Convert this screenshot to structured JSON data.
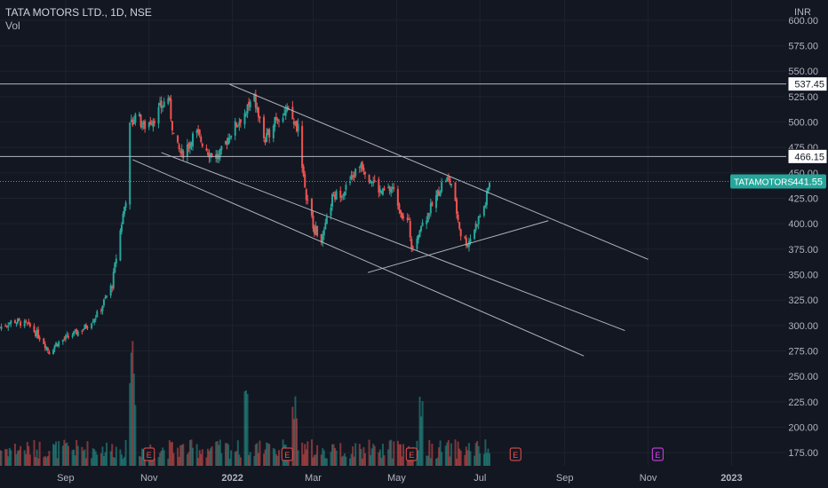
{
  "header": {
    "symbol_title": "TATA MOTORS LTD., 1D, NSE",
    "indicator_label": "Vol"
  },
  "chart_data": {
    "type": "candlestick",
    "currency_label": "INR",
    "price_axis_ticks": [
      "600.00",
      "575.00",
      "550.00",
      "525.00",
      "500.00",
      "475.00",
      "450.00",
      "425.00",
      "400.00",
      "375.00",
      "350.00",
      "325.00",
      "300.00",
      "275.00",
      "250.00",
      "225.00",
      "200.00",
      "175.00"
    ],
    "price_axis_values": [
      600,
      575,
      550,
      525,
      500,
      475,
      450,
      425,
      400,
      375,
      350,
      325,
      300,
      275,
      250,
      225,
      200,
      175
    ],
    "time_axis_labels": [
      "Sep",
      "Nov",
      "2022",
      "Mar",
      "May",
      "Jul",
      "Sep",
      "Nov",
      "2023"
    ],
    "time_axis_dates": [
      "2021-09-01",
      "2021-11-01",
      "2022-01-01",
      "2022-03-01",
      "2022-05-01",
      "2022-07-01",
      "2022-09-01",
      "2022-11-01",
      "2023-01-01"
    ],
    "ylim": [
      162,
      620
    ],
    "xlim": [
      "2021-07-15",
      "2023-02-10"
    ],
    "colors": {
      "up": "#26a69a",
      "down": "#ef5350",
      "background": "#131722",
      "grid": "#1e222d",
      "lines": "#b2b5be"
    },
    "series": [
      {
        "name": "TATAMOTORS",
        "closes": [
          [
            "2021-07-15",
            298
          ],
          [
            "2021-07-25",
            305
          ],
          [
            "2021-08-05",
            300
          ],
          [
            "2021-08-15",
            286
          ],
          [
            "2021-08-20",
            274
          ],
          [
            "2021-08-25",
            282
          ],
          [
            "2021-09-05",
            290
          ],
          [
            "2021-09-15",
            298
          ],
          [
            "2021-09-25",
            312
          ],
          [
            "2021-10-05",
            340
          ],
          [
            "2021-10-10",
            385
          ],
          [
            "2021-10-15",
            425
          ],
          [
            "2021-10-18",
            495
          ],
          [
            "2021-10-22",
            510
          ],
          [
            "2021-10-28",
            495
          ],
          [
            "2021-11-05",
            505
          ],
          [
            "2021-11-15",
            525
          ],
          [
            "2021-11-20",
            478
          ],
          [
            "2021-11-25",
            468
          ],
          [
            "2021-12-05",
            490
          ],
          [
            "2021-12-15",
            470
          ],
          [
            "2021-12-22",
            465
          ],
          [
            "2021-12-30",
            488
          ],
          [
            "2022-01-10",
            510
          ],
          [
            "2022-01-17",
            522
          ],
          [
            "2022-01-25",
            480
          ],
          [
            "2022-02-01",
            505
          ],
          [
            "2022-02-10",
            510
          ],
          [
            "2022-02-18",
            495
          ],
          [
            "2022-02-24",
            425
          ],
          [
            "2022-03-02",
            395
          ],
          [
            "2022-03-08",
            385
          ],
          [
            "2022-03-15",
            425
          ],
          [
            "2022-03-25",
            435
          ],
          [
            "2022-04-05",
            460
          ],
          [
            "2022-04-12",
            445
          ],
          [
            "2022-04-20",
            430
          ],
          [
            "2022-04-28",
            435
          ],
          [
            "2022-05-05",
            410
          ],
          [
            "2022-05-10",
            400
          ],
          [
            "2022-05-12",
            378
          ],
          [
            "2022-05-20",
            400
          ],
          [
            "2022-05-28",
            420
          ],
          [
            "2022-06-05",
            445
          ],
          [
            "2022-06-10",
            440
          ],
          [
            "2022-06-17",
            390
          ],
          [
            "2022-06-22",
            380
          ],
          [
            "2022-06-30",
            405
          ],
          [
            "2022-07-05",
            420
          ],
          [
            "2022-07-08",
            441.55
          ]
        ],
        "volume_events": [
          "2021-10-20",
          "2022-01-10",
          "2022-02-15",
          "2022-05-20",
          "2022-07-25",
          "2022-11-05"
        ]
      }
    ],
    "last_price_label": {
      "symbol": "TATAMOTORS",
      "price": "441.55",
      "value": 441.55
    },
    "horizontal_levels": [
      {
        "value": 537.45,
        "label": "537.45"
      },
      {
        "value": 466.15,
        "label": "466.15"
      }
    ],
    "trendlines": [
      {
        "from": [
          "2021-10-20",
          463
        ],
        "to": [
          "2022-09-15",
          270
        ]
      },
      {
        "from": [
          "2021-11-10",
          470
        ],
        "to": [
          "2022-10-15",
          295
        ]
      },
      {
        "from": [
          "2021-12-30",
          537
        ],
        "to": [
          "2022-11-01",
          365
        ]
      },
      {
        "from": [
          "2022-04-10",
          352
        ],
        "to": [
          "2022-08-20",
          403
        ]
      }
    ],
    "earnings_markers": [
      "E",
      "E",
      "E",
      "E",
      "E"
    ]
  }
}
